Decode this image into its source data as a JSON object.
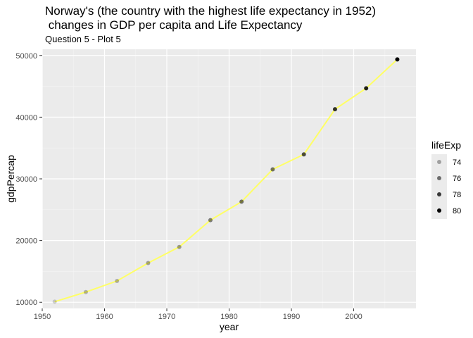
{
  "chart_data": {
    "type": "scatter",
    "title_line1": "Norway's (the country with the highest life expectancy in 1952)",
    "title_line2": " changes in GDP per capita and Life Expectancy",
    "subtitle": "Question 5 - Plot 5",
    "xlabel": "year",
    "ylabel": "gdpPercap",
    "xlim": [
      1950,
      2010
    ],
    "ylim": [
      9000,
      51000
    ],
    "x_ticks": [
      1950,
      1960,
      1970,
      1980,
      1990,
      2000
    ],
    "y_ticks": [
      10000,
      20000,
      30000,
      40000,
      50000
    ],
    "grid": true,
    "line_color": "#ffff66",
    "point_color": "#000000",
    "panel_bg": "#ebebeb",
    "x": [
      1952,
      1957,
      1962,
      1967,
      1972,
      1977,
      1982,
      1987,
      1992,
      1997,
      2002,
      2007
    ],
    "gdpPercap": [
      10095,
      11654,
      13450,
      16362,
      18965,
      23311,
      26299,
      31541,
      33966,
      41283,
      44684,
      49357
    ],
    "lifeExp": [
      72.67,
      73.44,
      73.47,
      74.08,
      74.34,
      75.37,
      75.97,
      75.89,
      77.32,
      78.32,
      79.05,
      80.196
    ],
    "legend": {
      "title": "lifeExp",
      "position": "right",
      "entries": [
        {
          "label": "74",
          "value": 74
        },
        {
          "label": "76",
          "value": 76
        },
        {
          "label": "78",
          "value": 78
        },
        {
          "label": "80",
          "value": 80
        }
      ]
    }
  }
}
